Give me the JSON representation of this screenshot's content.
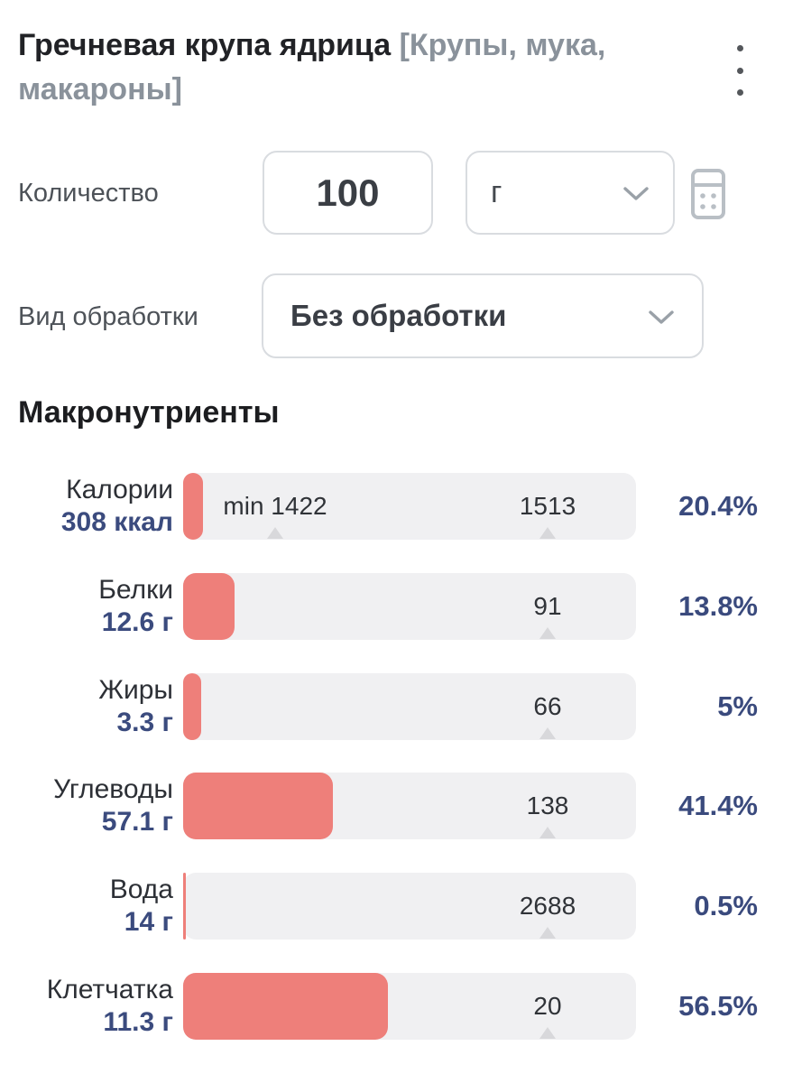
{
  "header": {
    "title": "Гречневая крупа ядрица",
    "category": "[Крупы, мука, макароны]",
    "menu_icon": "kebab-menu"
  },
  "quantity": {
    "label": "Количество",
    "value": "100",
    "unit": "г",
    "calculator_icon": "calculator"
  },
  "processing": {
    "label": "Вид обработки",
    "value": "Без обработки"
  },
  "section": {
    "title": "Макронутриенты"
  },
  "chart_data": {
    "type": "bar",
    "orientation": "horizontal",
    "title": "Макронутриенты",
    "note": "each bar shows amount per 100 г versus daily norm marker; percent = value/norm",
    "rows": [
      {
        "name": "Калории",
        "amount": "308 ккал",
        "value": 308,
        "norm": 1513,
        "min": 1422,
        "min_label": "min 1422",
        "norm_label": "1513",
        "percent": "20.4%",
        "bar_pct": 4.4
      },
      {
        "name": "Белки",
        "amount": "12.6 г",
        "value": 12.6,
        "norm": 91,
        "norm_label": "91",
        "percent": "13.8%",
        "bar_pct": 11.4
      },
      {
        "name": "Жиры",
        "amount": "3.3 г",
        "value": 3.3,
        "norm": 66,
        "norm_label": "66",
        "percent": "5%",
        "bar_pct": 3.9
      },
      {
        "name": "Углеводы",
        "amount": "57.1 г",
        "value": 57.1,
        "norm": 138,
        "norm_label": "138",
        "percent": "41.4%",
        "bar_pct": 33.1
      },
      {
        "name": "Вода",
        "amount": "14 г",
        "value": 14,
        "norm": 2688,
        "norm_label": "2688",
        "percent": "0.5%",
        "bar_pct": 0.6
      },
      {
        "name": "Клетчатка",
        "amount": "11.3 г",
        "value": 11.3,
        "norm": 20,
        "norm_label": "20",
        "percent": "56.5%",
        "bar_pct": 45.2
      }
    ]
  },
  "colors": {
    "accent_bar": "#ee7f7a",
    "track": "#f0f0f2",
    "value_navy": "#3b4b7e",
    "title_dark": "#212226",
    "category_gray": "#8a929b",
    "border_gray": "#d9dce0"
  }
}
